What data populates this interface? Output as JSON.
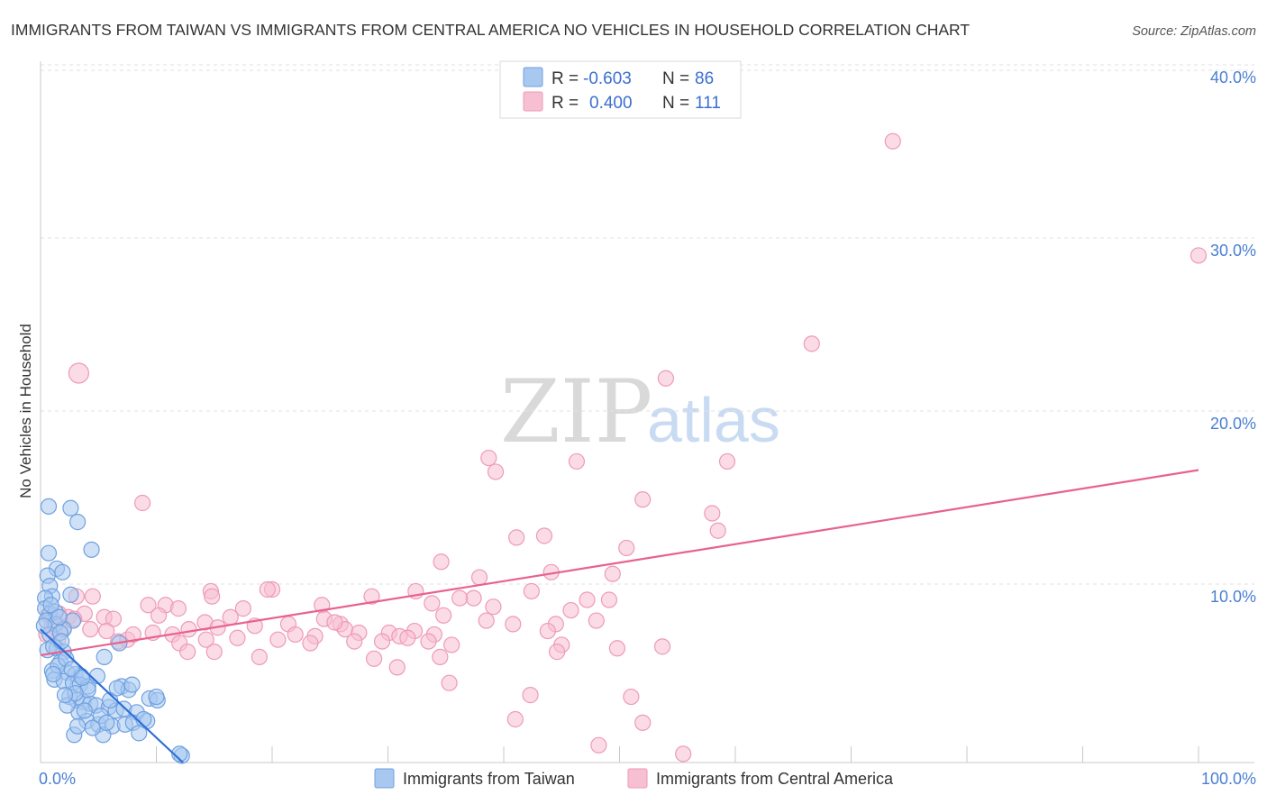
{
  "title": "IMMIGRANTS FROM TAIWAN VS IMMIGRANTS FROM CENTRAL AMERICA NO VEHICLES IN HOUSEHOLD CORRELATION CHART",
  "source": "Source: ZipAtlas.com",
  "watermark": {
    "zip": "ZIP",
    "atlas": "atlas"
  },
  "legend": {
    "r_label": "R =",
    "n_label": "N =",
    "rows": [
      {
        "r": "-0.603",
        "n": "86"
      },
      {
        "r": "0.400",
        "n": "111"
      }
    ]
  },
  "bottom_legend": [
    "Immigrants from Taiwan",
    "Immigrants from Central America"
  ],
  "colors": {
    "taiwan_fill": "#a8c8f0",
    "taiwan_stroke": "#6fa0e0",
    "taiwan_line": "#2f6fd6",
    "ca_fill": "#f7c0d2",
    "ca_stroke": "#ee9ab6",
    "ca_line": "#e8628e",
    "tick_text": "#4a7fd4"
  },
  "chart_data": {
    "type": "scatter",
    "title": "IMMIGRANTS FROM TAIWAN VS IMMIGRANTS FROM CENTRAL AMERICA NO VEHICLES IN HOUSEHOLD CORRELATION CHART",
    "xlabel": "",
    "ylabel": "No Vehicles in Household",
    "xlim": [
      0,
      100
    ],
    "ylim": [
      0,
      40
    ],
    "x_tick_labels": [
      "0.0%",
      "100.0%"
    ],
    "y_tick_labels": [
      "10.0%",
      "20.0%",
      "30.0%",
      "40.0%"
    ],
    "y_tick_values": [
      10,
      20,
      30,
      40
    ],
    "series": [
      {
        "name": "Immigrants from Taiwan",
        "r": -0.603,
        "n": 86,
        "trend": {
          "x": [
            0,
            12.3
          ],
          "y": [
            7.7,
            0
          ]
        },
        "points": [
          [
            0.7,
            14.8
          ],
          [
            2.6,
            14.7
          ],
          [
            3.2,
            13.9
          ],
          [
            4.4,
            12.3
          ],
          [
            0.7,
            12.1
          ],
          [
            1.4,
            11.2
          ],
          [
            1.9,
            11.0
          ],
          [
            0.6,
            10.8
          ],
          [
            0.8,
            10.2
          ],
          [
            1.0,
            9.6
          ],
          [
            0.4,
            9.5
          ],
          [
            2.6,
            9.7
          ],
          [
            0.4,
            8.9
          ],
          [
            0.8,
            8.6
          ],
          [
            1.3,
            8.7
          ],
          [
            2.8,
            8.2
          ],
          [
            0.5,
            8.2
          ],
          [
            1.3,
            8.0
          ],
          [
            2.0,
            7.7
          ],
          [
            0.8,
            7.4
          ],
          [
            1.7,
            7.5
          ],
          [
            0.6,
            6.5
          ],
          [
            1.4,
            6.6
          ],
          [
            2.0,
            6.4
          ],
          [
            1.7,
            5.8
          ],
          [
            1.0,
            5.3
          ],
          [
            2.3,
            5.2
          ],
          [
            3.0,
            5.1
          ],
          [
            3.5,
            5.0
          ],
          [
            1.2,
            4.8
          ],
          [
            2.0,
            4.7
          ],
          [
            2.8,
            4.6
          ],
          [
            3.4,
            4.5
          ],
          [
            4.1,
            4.4
          ],
          [
            2.5,
            3.8
          ],
          [
            3.1,
            3.6
          ],
          [
            3.7,
            3.5
          ],
          [
            4.3,
            3.4
          ],
          [
            4.8,
            3.3
          ],
          [
            5.9,
            3.2
          ],
          [
            6.5,
            3.0
          ],
          [
            7.2,
            3.1
          ],
          [
            8.3,
            2.9
          ],
          [
            9.4,
            3.7
          ],
          [
            10.1,
            3.6
          ],
          [
            3.3,
            2.9
          ],
          [
            4.0,
            2.4
          ],
          [
            5.0,
            2.2
          ],
          [
            6.2,
            2.1
          ],
          [
            7.3,
            2.2
          ],
          [
            8.0,
            2.3
          ],
          [
            8.5,
            1.7
          ],
          [
            2.9,
            1.6
          ],
          [
            5.4,
            1.6
          ],
          [
            12.2,
            0.4
          ],
          [
            5.5,
            6.1
          ],
          [
            6.8,
            6.9
          ],
          [
            7.0,
            4.4
          ],
          [
            7.6,
            4.2
          ],
          [
            4.1,
            4.2
          ],
          [
            2.3,
            3.3
          ],
          [
            1.5,
            5.6
          ],
          [
            2.2,
            6.0
          ],
          [
            1.1,
            6.7
          ],
          [
            1.8,
            7.0
          ],
          [
            0.9,
            9.1
          ],
          [
            3.0,
            4.0
          ],
          [
            3.8,
            3.0
          ],
          [
            6.0,
            3.6
          ],
          [
            9.2,
            2.4
          ],
          [
            5.2,
            2.7
          ],
          [
            4.5,
            2.0
          ],
          [
            2.7,
            5.4
          ],
          [
            3.6,
            4.9
          ],
          [
            1.6,
            8.4
          ],
          [
            0.3,
            7.9
          ],
          [
            1.1,
            5.1
          ],
          [
            2.1,
            3.9
          ],
          [
            7.9,
            4.5
          ],
          [
            8.9,
            2.5
          ],
          [
            6.6,
            4.3
          ],
          [
            4.9,
            5.0
          ],
          [
            3.2,
            2.1
          ],
          [
            5.7,
            2.3
          ],
          [
            10.0,
            3.8
          ],
          [
            12.0,
            0.5
          ]
        ]
      },
      {
        "name": "Immigrants from Central America",
        "r": 0.4,
        "n": 111,
        "trend": {
          "x": [
            0,
            100
          ],
          "y": [
            6.2,
            16.9
          ]
        },
        "points": [
          [
            73.6,
            35.9
          ],
          [
            100,
            29.3
          ],
          [
            66.6,
            24.2
          ],
          [
            54.0,
            22.2
          ],
          [
            3.3,
            22.5
          ],
          [
            38.7,
            17.6
          ],
          [
            39.3,
            16.8
          ],
          [
            46.3,
            17.4
          ],
          [
            59.3,
            17.4
          ],
          [
            52.0,
            15.2
          ],
          [
            8.8,
            15.0
          ],
          [
            58.0,
            14.4
          ],
          [
            58.5,
            13.4
          ],
          [
            41.1,
            13.0
          ],
          [
            43.5,
            13.1
          ],
          [
            50.6,
            12.4
          ],
          [
            34.6,
            11.6
          ],
          [
            44.1,
            11.0
          ],
          [
            49.4,
            10.9
          ],
          [
            37.9,
            10.7
          ],
          [
            20.0,
            10.0
          ],
          [
            14.7,
            9.9
          ],
          [
            19.6,
            10.0
          ],
          [
            3.1,
            9.6
          ],
          [
            4.5,
            9.6
          ],
          [
            14.8,
            9.6
          ],
          [
            28.6,
            9.6
          ],
          [
            32.4,
            9.9
          ],
          [
            42.4,
            9.9
          ],
          [
            37.4,
            9.5
          ],
          [
            47.2,
            9.4
          ],
          [
            49.1,
            9.4
          ],
          [
            9.3,
            9.1
          ],
          [
            10.8,
            9.1
          ],
          [
            11.9,
            8.9
          ],
          [
            17.5,
            8.9
          ],
          [
            24.3,
            9.1
          ],
          [
            33.8,
            9.2
          ],
          [
            36.2,
            9.5
          ],
          [
            39.1,
            9.0
          ],
          [
            45.8,
            8.8
          ],
          [
            0.7,
            8.5
          ],
          [
            1.6,
            8.6
          ],
          [
            2.4,
            8.4
          ],
          [
            3.8,
            8.6
          ],
          [
            5.5,
            8.4
          ],
          [
            6.3,
            8.3
          ],
          [
            10.2,
            8.5
          ],
          [
            14.2,
            8.1
          ],
          [
            21.4,
            8.0
          ],
          [
            24.5,
            8.3
          ],
          [
            25.9,
            8.0
          ],
          [
            34.8,
            8.5
          ],
          [
            38.5,
            8.2
          ],
          [
            44.5,
            8.0
          ],
          [
            1.0,
            7.9
          ],
          [
            2.0,
            7.8
          ],
          [
            4.3,
            7.7
          ],
          [
            5.7,
            7.6
          ],
          [
            9.7,
            7.5
          ],
          [
            11.4,
            7.4
          ],
          [
            12.8,
            7.7
          ],
          [
            15.3,
            7.8
          ],
          [
            18.5,
            7.9
          ],
          [
            22.0,
            7.4
          ],
          [
            23.7,
            7.3
          ],
          [
            26.3,
            7.7
          ],
          [
            27.5,
            7.5
          ],
          [
            30.1,
            7.5
          ],
          [
            31.0,
            7.3
          ],
          [
            32.3,
            7.6
          ],
          [
            34.0,
            7.4
          ],
          [
            1.5,
            7.1
          ],
          [
            6.7,
            7.0
          ],
          [
            7.5,
            7.1
          ],
          [
            12.0,
            6.9
          ],
          [
            14.3,
            7.1
          ],
          [
            17.0,
            7.2
          ],
          [
            20.5,
            7.1
          ],
          [
            23.3,
            6.9
          ],
          [
            27.1,
            7.0
          ],
          [
            29.5,
            7.0
          ],
          [
            33.5,
            7.0
          ],
          [
            35.5,
            6.8
          ],
          [
            45.0,
            6.8
          ],
          [
            49.8,
            6.6
          ],
          [
            53.7,
            6.7
          ],
          [
            0.5,
            7.4
          ],
          [
            1.2,
            8.0
          ],
          [
            12.7,
            6.4
          ],
          [
            15.0,
            6.4
          ],
          [
            18.9,
            6.1
          ],
          [
            28.8,
            6.0
          ],
          [
            30.8,
            5.5
          ],
          [
            34.5,
            6.1
          ],
          [
            44.6,
            6.4
          ],
          [
            35.3,
            4.6
          ],
          [
            42.3,
            3.9
          ],
          [
            51.0,
            3.8
          ],
          [
            41.0,
            2.5
          ],
          [
            52.0,
            2.3
          ],
          [
            48.2,
            1.0
          ],
          [
            55.5,
            0.5
          ],
          [
            2.9,
            8.3
          ],
          [
            8.0,
            7.4
          ],
          [
            16.4,
            8.4
          ],
          [
            25.4,
            8.1
          ],
          [
            31.7,
            7.2
          ],
          [
            40.8,
            8.0
          ],
          [
            43.8,
            7.6
          ],
          [
            48.0,
            8.2
          ]
        ]
      }
    ]
  }
}
